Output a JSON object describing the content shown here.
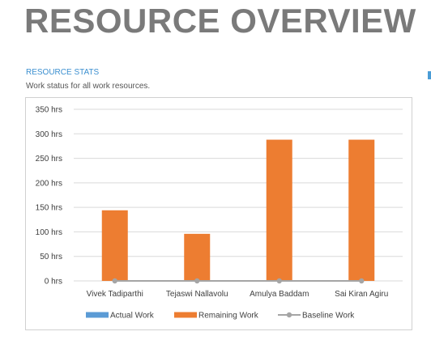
{
  "report": {
    "title": "RESOURCE OVERVIEW"
  },
  "section": {
    "heading": "RESOURCE STATS",
    "subheading": "Work status for all work resources."
  },
  "colors": {
    "actual": "#5b9bd5",
    "remaining": "#ed7d31",
    "baseline": "#a5a5a5",
    "grid": "#d9d9d9"
  },
  "chart_data": {
    "type": "bar",
    "categories": [
      "Vivek Tadiparthi",
      "Tejaswi Nallavolu",
      "Amulya Baddam",
      "Sai Kiran Agiru"
    ],
    "series": [
      {
        "name": "Actual Work",
        "type": "bar",
        "values": [
          0,
          0,
          0,
          0
        ]
      },
      {
        "name": "Remaining Work",
        "type": "bar",
        "values": [
          144,
          96,
          288,
          288
        ]
      },
      {
        "name": "Baseline Work",
        "type": "line",
        "values": [
          0,
          0,
          0,
          0
        ]
      }
    ],
    "yticks": [
      "0 hrs",
      "50 hrs",
      "100 hrs",
      "150 hrs",
      "200 hrs",
      "250 hrs",
      "300 hrs",
      "350 hrs"
    ],
    "ylim": [
      0,
      350
    ],
    "ystep": 50,
    "grid": true,
    "legend_position": "bottom"
  }
}
